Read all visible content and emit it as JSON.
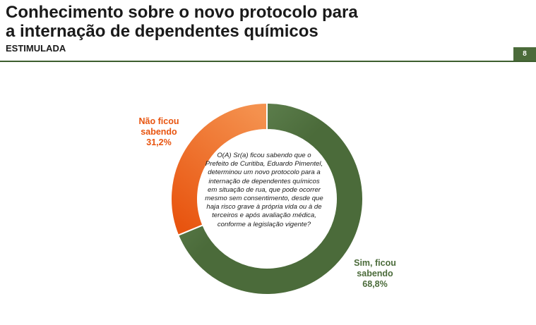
{
  "header": {
    "title_line1": "Conhecimento sobre o novo protocolo para",
    "title_line2": "a internação de dependentes químicos",
    "subtitle": "ESTIMULADA",
    "page_number": "8"
  },
  "question": "O(A) Sr(a) ficou sabendo que o Prefeito de Curitiba, Eduardo Pimentel, determinou um novo protocolo para a internação de dependentes químicos em situação de rua, que pode ocorrer mesmo sem consentimento, desde que haja risco grave à própria vida ou à de terceiros e após avaliação médica, conforme a legislação vigente?",
  "colors": {
    "sim": "#4b6b3a",
    "sim_light": "#6f9260",
    "nao": "#e8540f",
    "nao_light": "#f4914e",
    "accent": "#3d5e2e"
  },
  "chart_data": {
    "type": "pie",
    "variant": "donut",
    "categories": [
      "Sim, ficou sabendo",
      "Não ficou sabendo"
    ],
    "values": [
      68.8,
      31.2
    ],
    "labels": [
      {
        "line1": "Sim, ficou",
        "line2": "sabendo",
        "value": "68,8%"
      },
      {
        "line1": "Não ficou",
        "line2": "sabendo",
        "value": "31,2%"
      }
    ]
  }
}
